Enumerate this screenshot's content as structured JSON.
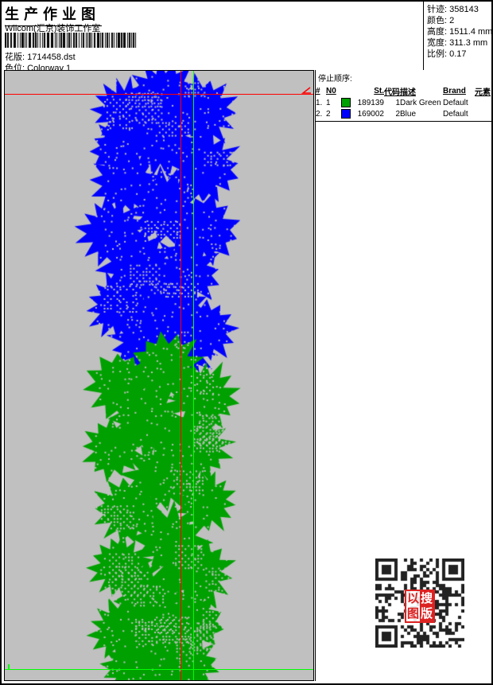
{
  "header": {
    "title": "生产作业图",
    "studio": "Wilcom(汇京)装饰工作室",
    "pattern_label": "花版:",
    "pattern_value": "1714458.dst",
    "colorway_label": "色位:",
    "colorway_value": "Colorway 1"
  },
  "stats": {
    "stitches_label": "针迹:",
    "stitches_value": "358143",
    "colors_label": "颜色:",
    "colors_value": "2",
    "height_label": "高度:",
    "height_value": "1511.4 mm",
    "width_label": "宽度:",
    "width_value": "311.3 mm",
    "scale_label": "比例:",
    "scale_value": "0.17"
  },
  "stop_sequence": {
    "title": "停止顺序:",
    "columns": {
      "num": "#",
      "n0": "N0",
      "st": "St.",
      "code": "代码",
      "desc": "描述",
      "brand": "Brand",
      "element": "元素"
    },
    "rows": [
      {
        "num": "1.",
        "n0": "1",
        "swatch": "#00A000",
        "st": "189139",
        "code": "1",
        "desc": "Dark Green",
        "brand": "Default",
        "element": ""
      },
      {
        "num": "2.",
        "n0": "2",
        "swatch": "#0000FF",
        "st": "169002",
        "code": "2",
        "desc": "Blue",
        "brand": "Default",
        "element": ""
      }
    ]
  },
  "design": {
    "background": "#C0C0C0",
    "thread_colors": {
      "green": "#00A000",
      "blue": "#0000FF"
    },
    "crosshair_color": "#FF0000",
    "guide_color": "#00FF00"
  },
  "qr_stamp": {
    "chars": [
      "以",
      "搜",
      "图",
      "版"
    ],
    "color": "#DD2222"
  }
}
